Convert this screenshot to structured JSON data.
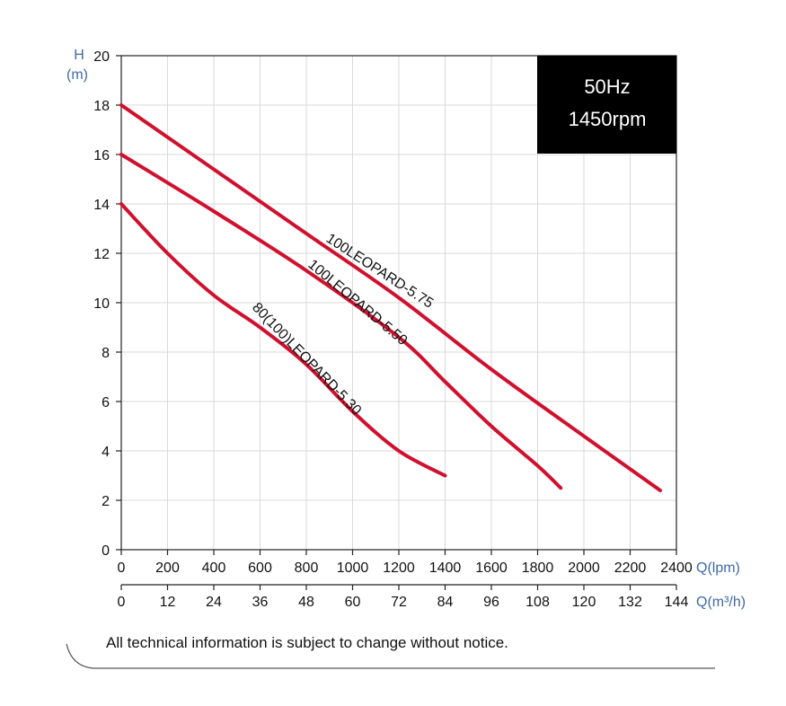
{
  "chart_data": {
    "type": "line",
    "title": "",
    "badge": {
      "line1": "50Hz",
      "line2": "1450rpm"
    },
    "y_axis": {
      "label_top": "H",
      "label_unit": "(m)",
      "range": [
        0,
        20
      ],
      "ticks": [
        "0",
        "2",
        "4",
        "6",
        "8",
        "10",
        "12",
        "14",
        "16",
        "18",
        "20"
      ]
    },
    "x_axis": {
      "unit": "Q(lpm)",
      "range": [
        0,
        2400
      ],
      "ticks": [
        "0",
        "200",
        "400",
        "600",
        "800",
        "1000",
        "1200",
        "1400",
        "1600",
        "1800",
        "2000",
        "2200",
        "2400"
      ]
    },
    "x_axis_secondary": {
      "unit": "Q(m³/h)",
      "range": [
        0,
        144
      ],
      "ticks": [
        "0",
        "12",
        "24",
        "36",
        "48",
        "60",
        "72",
        "84",
        "96",
        "108",
        "120",
        "132",
        "144"
      ]
    },
    "grid": true,
    "series_color": "#d0102e",
    "series": [
      {
        "name": "100LEOPARD-5.75",
        "x": [
          0,
          400,
          800,
          1200,
          1600,
          2000,
          2330
        ],
        "y": [
          18.0,
          15.4,
          12.8,
          10.2,
          7.3,
          4.6,
          2.4
        ]
      },
      {
        "name": "100LEOPARD-5.50",
        "x": [
          0,
          400,
          800,
          1200,
          1400,
          1600,
          1800,
          1900
        ],
        "y": [
          16.0,
          13.7,
          11.3,
          8.6,
          6.8,
          5.0,
          3.4,
          2.5
        ]
      },
      {
        "name": "80(100)LEOPARD-5.30",
        "x": [
          0,
          200,
          400,
          600,
          800,
          1000,
          1200,
          1400
        ],
        "y": [
          14.0,
          12.0,
          10.3,
          9.0,
          7.5,
          5.6,
          4.0,
          3.0
        ]
      }
    ]
  },
  "footer": {
    "note": "All technical information is subject to change without notice."
  }
}
